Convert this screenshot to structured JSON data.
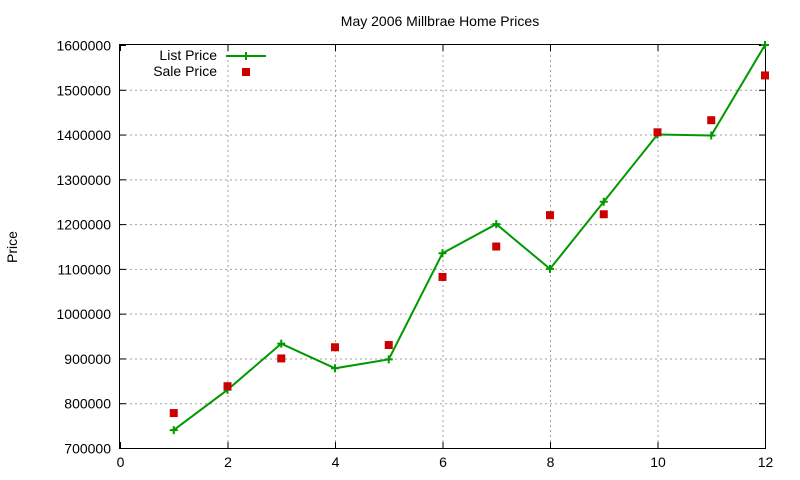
{
  "chart_data": {
    "type": "line",
    "title": "May 2006 Millbrae Home Prices",
    "xlabel": "",
    "ylabel": "Price",
    "xlim": [
      0,
      12
    ],
    "ylim": [
      700000,
      1600000
    ],
    "x_ticks": [
      "0",
      "2",
      "4",
      "6",
      "8",
      "10",
      "12"
    ],
    "y_ticks": [
      "700000",
      "800000",
      "900000",
      "1000000",
      "1100000",
      "1200000",
      "1300000",
      "1400000",
      "1500000",
      "1600000"
    ],
    "grid": true,
    "legend_position": "top-left",
    "series": [
      {
        "name": "List Price",
        "style": "lines+points",
        "marker": "plus",
        "color": "#009900",
        "x": [
          1,
          2,
          3,
          4,
          5,
          6,
          7,
          8,
          9,
          10,
          11,
          12
        ],
        "y": [
          740000,
          830000,
          933000,
          878000,
          898000,
          1135000,
          1200000,
          1100000,
          1250000,
          1400000,
          1398000,
          1600000
        ]
      },
      {
        "name": "Sale Price",
        "style": "points",
        "marker": "square",
        "color": "#cc0000",
        "x": [
          1,
          2,
          3,
          4,
          5,
          6,
          7,
          8,
          9,
          10,
          11,
          12
        ],
        "y": [
          778000,
          838000,
          900000,
          925000,
          930000,
          1082000,
          1150000,
          1220000,
          1222000,
          1405000,
          1432000,
          1532000
        ]
      }
    ]
  }
}
